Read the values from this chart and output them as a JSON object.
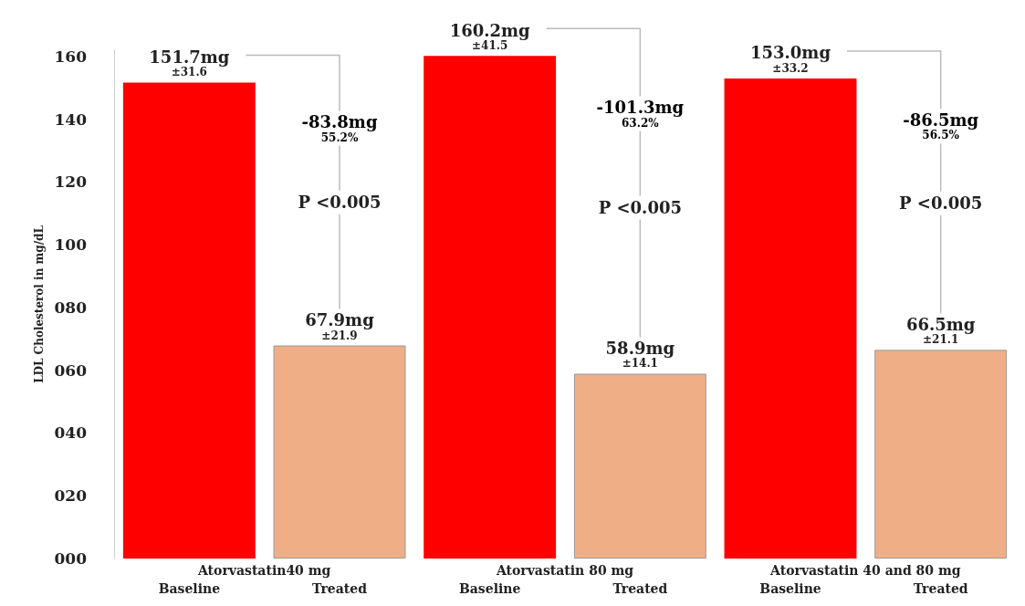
{
  "chart_data": {
    "type": "bar",
    "ylabel": "LDL Cholesterol in mg/dL",
    "categories": [
      "Baseline",
      "Treated",
      "Baseline",
      "Treated",
      "Baseline",
      "Treated"
    ],
    "values": [
      151.7,
      67.9,
      160.2,
      58.9,
      153.0,
      66.5
    ],
    "colors": [
      "#ff0000",
      "#f0ae86",
      "#ff0000",
      "#f0ae86",
      "#ff0000",
      "#f0ae86"
    ],
    "value_labels": [
      "151.7mg\n±31.6",
      "67.9mg\n±21.9",
      "160.2mg\n±41.5",
      "58.9mg\n±14.1",
      "153.0mg\n±33.2",
      "66.5mg\n±21.1"
    ],
    "annotations": [
      "Atorvastatin40 mg",
      "-83.8mg\n55.2%",
      "P <0.005",
      "Atorvastatin 80 mg",
      "-101.3mg\n63.2%",
      "P <0.005",
      "Atorvastatin 40 and 80 mg",
      "-86.5mg\n56.5%",
      "P <0.005"
    ],
    "ylim": [
      0,
      162
    ],
    "yticks": [
      {
        "value": 0,
        "label": "000"
      },
      {
        "value": 20,
        "label": "020"
      },
      {
        "value": 40,
        "label": "040"
      },
      {
        "value": 60,
        "label": "060"
      },
      {
        "value": 80,
        "label": "080"
      },
      100,
      120,
      140,
      160
    ],
    "grid": false
  }
}
